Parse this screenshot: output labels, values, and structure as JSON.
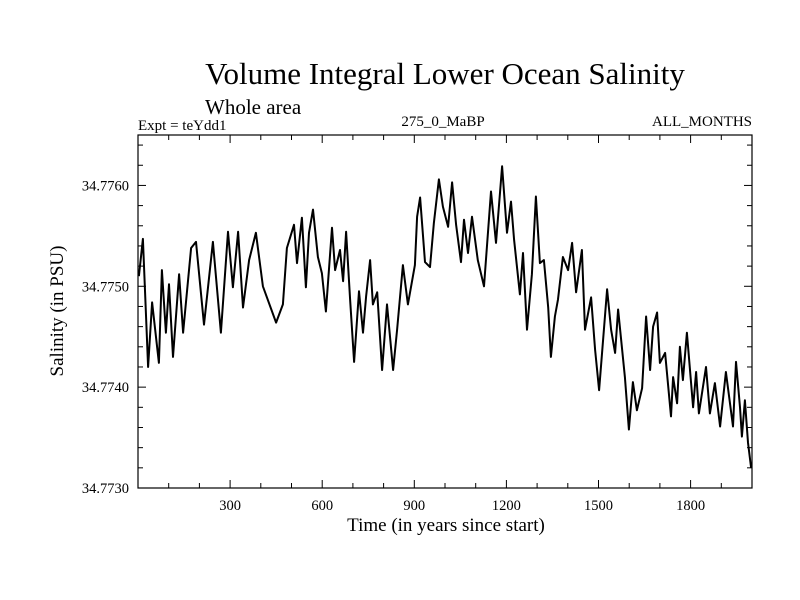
{
  "chart_data": {
    "type": "line",
    "title": "Volume Integral Lower Ocean Salinity",
    "subtitle": "Whole area",
    "annotations": {
      "left": "Expt = teYdd1",
      "center": "275_0_MaBP",
      "right": "ALL_MONTHS"
    },
    "xlabel": "Time (in years since start)",
    "ylabel": "Salinity (in PSU)",
    "xlim": [
      0,
      2000
    ],
    "ylim": [
      34.773,
      34.7765
    ],
    "xticks": [
      300,
      600,
      900,
      1200,
      1500,
      1800
    ],
    "xtick_labels": [
      "300",
      "600",
      "900",
      "1200",
      "1500",
      "1800"
    ],
    "x_minor_step": 100,
    "yticks": [
      34.773,
      34.774,
      34.775,
      34.776
    ],
    "ytick_labels": [
      "34.7730",
      "34.7740",
      "34.7750",
      "34.7760"
    ],
    "y_minor_step": 0.0002,
    "grid": false,
    "legend": "none",
    "series": [
      {
        "name": "Salinity",
        "color": "#000000",
        "x": [
          3,
          16,
          33,
          46,
          68,
          78,
          91,
          101,
          114,
          134,
          147,
          173,
          189,
          215,
          244,
          270,
          293,
          309,
          326,
          342,
          362,
          384,
          407,
          450,
          472,
          485,
          508,
          518,
          534,
          547,
          557,
          570,
          586,
          599,
          612,
          632,
          642,
          658,
          668,
          678,
          691,
          704,
          720,
          733,
          743,
          756,
          765,
          779,
          795,
          811,
          831,
          844,
          863,
          879,
          902,
          909,
          919,
          935,
          951,
          964,
          980,
          993,
          1010,
          1023,
          1036,
          1052,
          1062,
          1075,
          1088,
          1107,
          1127,
          1150,
          1166,
          1186,
          1202,
          1215,
          1225,
          1244,
          1254,
          1267,
          1283,
          1296,
          1309,
          1322,
          1336,
          1345,
          1358,
          1368,
          1384,
          1401,
          1414,
          1427,
          1446,
          1456,
          1476,
          1489,
          1502,
          1528,
          1541,
          1554,
          1564,
          1586,
          1599,
          1612,
          1625,
          1642,
          1655,
          1668,
          1678,
          1691,
          1700,
          1717,
          1736,
          1743,
          1756,
          1765,
          1775,
          1788,
          1808,
          1818,
          1827,
          1850,
          1863,
          1879,
          1896,
          1915,
          1938,
          1948,
          1961,
          1967,
          1977,
          1987,
          1997
        ],
        "y": [
          34.7751,
          34.77547,
          34.7742,
          34.77484,
          34.77424,
          34.77516,
          34.77454,
          34.77502,
          34.7743,
          34.77512,
          34.77454,
          34.77538,
          34.77544,
          34.77462,
          34.77544,
          34.77454,
          34.77554,
          34.77499,
          34.77554,
          34.77479,
          34.77526,
          34.77553,
          34.775,
          34.77464,
          34.77482,
          34.77538,
          34.77561,
          34.77523,
          34.77568,
          34.77499,
          34.77553,
          34.77576,
          34.77529,
          34.77513,
          34.77475,
          34.77558,
          34.77516,
          34.77536,
          34.77505,
          34.77554,
          34.77487,
          34.77425,
          34.77495,
          34.77454,
          34.7749,
          34.77526,
          34.77482,
          34.77494,
          34.77417,
          34.77482,
          34.77417,
          34.77457,
          34.77521,
          34.77482,
          34.77521,
          34.77569,
          34.77588,
          34.77524,
          34.77519,
          34.77563,
          34.77606,
          34.77579,
          34.77559,
          34.77603,
          34.77561,
          34.77524,
          34.77566,
          34.77533,
          34.77569,
          34.77526,
          34.775,
          34.77594,
          34.77543,
          34.77619,
          34.77553,
          34.77584,
          34.77546,
          34.77492,
          34.77533,
          34.77457,
          34.77512,
          34.77589,
          34.77523,
          34.77526,
          34.77479,
          34.7743,
          34.7747,
          34.77487,
          34.77529,
          34.77516,
          34.77543,
          34.77494,
          34.77536,
          34.77457,
          34.77489,
          34.77437,
          34.77397,
          34.77497,
          34.77457,
          34.77434,
          34.77477,
          34.7741,
          34.77358,
          34.77405,
          34.77377,
          34.77399,
          34.7747,
          34.77417,
          34.7746,
          34.77474,
          34.77424,
          34.77434,
          34.77371,
          34.7741,
          34.77384,
          34.7744,
          34.77407,
          34.77454,
          34.7738,
          34.77415,
          34.77374,
          34.7742,
          34.77374,
          34.77404,
          34.77361,
          34.77415,
          34.77361,
          34.77425,
          34.7738,
          34.77351,
          34.77387,
          34.77345,
          34.7732
        ]
      }
    ]
  }
}
